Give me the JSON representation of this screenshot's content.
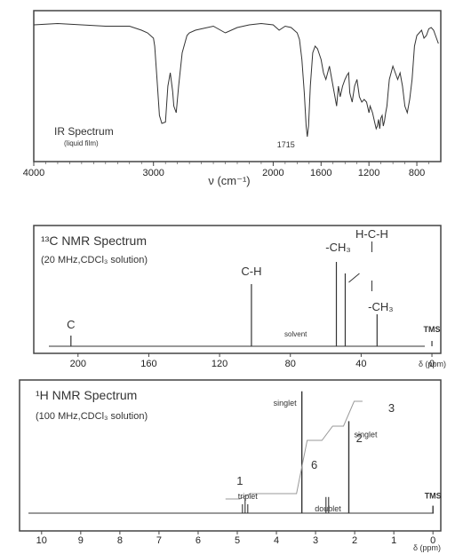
{
  "chart_data": [
    {
      "type": "line",
      "title": "IR Spectrum",
      "subtitle": "(liquid film)",
      "xlabel": "ν (cm⁻¹)",
      "xlim": [
        4000,
        600
      ],
      "x_direction": "reversed",
      "x_ticks": [
        "4000",
        "3000",
        "2000",
        "1600",
        "1200",
        "800"
      ],
      "annotations": [
        {
          "x": 1715,
          "text": "1715"
        }
      ],
      "ylabel": "",
      "series": [
        {
          "x": [
            4000,
            3800,
            3600,
            3400,
            3200,
            3100,
            3050,
            3000,
            2990,
            2970,
            2950,
            2930,
            2900,
            2880,
            2860,
            2840,
            2830,
            2810,
            2790,
            2760,
            2720,
            2700,
            2650,
            2600,
            2500,
            2400,
            2300,
            2200,
            2100,
            2000,
            1950,
            1900,
            1850,
            1800,
            1780,
            1760,
            1740,
            1725,
            1715,
            1705,
            1690,
            1670,
            1650,
            1630,
            1600,
            1580,
            1560,
            1545,
            1530,
            1510,
            1490,
            1470,
            1455,
            1440,
            1420,
            1400,
            1385,
            1370,
            1360,
            1340,
            1320,
            1300,
            1280,
            1260,
            1240,
            1220,
            1200,
            1190,
            1170,
            1150,
            1140,
            1130,
            1120,
            1110,
            1100,
            1090,
            1080,
            1070,
            1060,
            1050,
            1040,
            1030,
            1000,
            980,
            960,
            940,
            920,
            900,
            880,
            860,
            840,
            820,
            800,
            780,
            760,
            740,
            720,
            700,
            680,
            660,
            640,
            620
          ],
          "y": [
            0.96,
            0.97,
            0.96,
            0.95,
            0.95,
            0.92,
            0.9,
            0.86,
            0.8,
            0.55,
            0.28,
            0.22,
            0.23,
            0.5,
            0.6,
            0.46,
            0.35,
            0.3,
            0.5,
            0.75,
            0.88,
            0.9,
            0.92,
            0.93,
            0.95,
            0.9,
            0.94,
            0.96,
            0.97,
            0.96,
            0.92,
            0.95,
            0.94,
            0.9,
            0.85,
            0.7,
            0.45,
            0.2,
            0.12,
            0.2,
            0.5,
            0.75,
            0.8,
            0.78,
            0.7,
            0.6,
            0.55,
            0.6,
            0.65,
            0.55,
            0.45,
            0.35,
            0.5,
            0.42,
            0.5,
            0.55,
            0.58,
            0.6,
            0.45,
            0.38,
            0.5,
            0.55,
            0.42,
            0.38,
            0.4,
            0.38,
            0.3,
            0.35,
            0.3,
            0.22,
            0.18,
            0.2,
            0.25,
            0.18,
            0.26,
            0.28,
            0.2,
            0.24,
            0.3,
            0.35,
            0.45,
            0.55,
            0.65,
            0.6,
            0.55,
            0.6,
            0.5,
            0.35,
            0.3,
            0.4,
            0.55,
            0.8,
            0.88,
            0.9,
            0.92,
            0.86,
            0.88,
            0.93,
            0.94,
            0.92,
            0.87,
            0.82
          ]
        }
      ]
    },
    {
      "type": "line",
      "title": "¹³C NMR Spectrum",
      "subtitle": "(20 MHz,CDCl₃ solution)",
      "xlabel": "δ (ppm)",
      "xlim": [
        225,
        -5
      ],
      "x_direction": "reversed",
      "x_ticks": [
        "200",
        "160",
        "120",
        "80",
        "40",
        "0"
      ],
      "peaks": [
        {
          "ppm": 204,
          "height": 0.12,
          "label": "C"
        },
        {
          "ppm": 102,
          "height": 0.7,
          "label": "C-H"
        },
        {
          "ppm": 54,
          "height": 0.95,
          "label": "-CH₃"
        },
        {
          "ppm": 49,
          "height": 0.82,
          "label": "H-C-H"
        },
        {
          "ppm": 31,
          "height": 0.36,
          "label": "-CH₃"
        },
        {
          "ppm": 0,
          "height": 0.06,
          "label": "TMS"
        }
      ],
      "annotations": [
        {
          "ppm": 77,
          "text": "solvent"
        }
      ]
    },
    {
      "type": "line",
      "title": "¹H NMR Spectrum",
      "subtitle": "(100 MHz,CDCl₃ solution)",
      "xlabel": "δ (ppm)",
      "xlim": [
        10.2,
        -0.2
      ],
      "x_direction": "reversed",
      "x_ticks": [
        "10",
        "9",
        "8",
        "7",
        "6",
        "5",
        "4",
        "3",
        "2",
        "1",
        "0"
      ],
      "peaks": [
        {
          "ppm": 4.8,
          "height": 0.12,
          "multiplicity": "triplet",
          "integration": "1"
        },
        {
          "ppm": 3.35,
          "height": 0.98,
          "multiplicity": "singlet",
          "integration": "6"
        },
        {
          "ppm": 2.7,
          "height": 0.13,
          "multiplicity": "doublet",
          "integration": "2"
        },
        {
          "ppm": 2.15,
          "height": 0.74,
          "multiplicity": "singlet",
          "integration": "3"
        },
        {
          "ppm": 0,
          "height": 0.06,
          "label": "TMS"
        }
      ]
    }
  ],
  "colors": {
    "line": "#333333",
    "frame": "#444444",
    "background": "#ffffff"
  }
}
